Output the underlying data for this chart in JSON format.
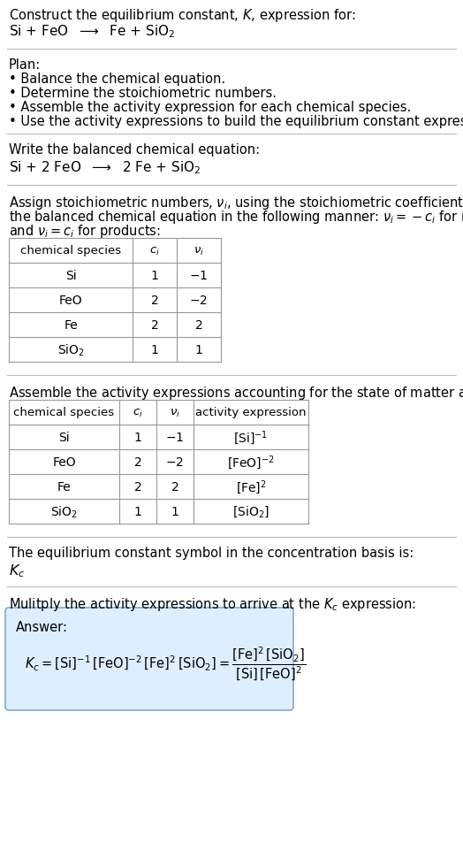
{
  "title_line1": "Construct the equilibrium constant, $K$, expression for:",
  "title_line2": "Si + FeO  $\\longrightarrow$  Fe + SiO$_2$",
  "plan_header": "Plan:",
  "balanced_header": "Write the balanced chemical equation:",
  "balanced_eq": "Si + 2 FeO  $\\longrightarrow$  2 Fe + SiO$_2$",
  "kc_header": "The equilibrium constant symbol in the concentration basis is:",
  "kc_symbol": "$K_c$",
  "multiply_header": "Mulitply the activity expressions to arrive at the $K_c$ expression:",
  "answer_label": "Answer:",
  "bg_color": "#ffffff",
  "answer_box_color": "#ddeeff",
  "answer_box_border": "#88aacc",
  "text_color": "#000000",
  "separator_color": "#bbbbbb",
  "table_line_color": "#999999"
}
